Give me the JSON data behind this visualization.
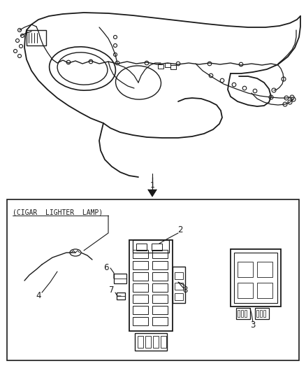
{
  "background_color": "#ffffff",
  "line_color": "#1a1a1a",
  "label_1": "1",
  "label_2": "2",
  "label_3": "3",
  "label_4": "4",
  "label_6": "6",
  "label_7": "7",
  "label_8": "8",
  "cigar_label": "(CIGAR  LIGHTER  LAMP)",
  "fig_width": 4.38,
  "fig_height": 5.33,
  "dpi": 100
}
